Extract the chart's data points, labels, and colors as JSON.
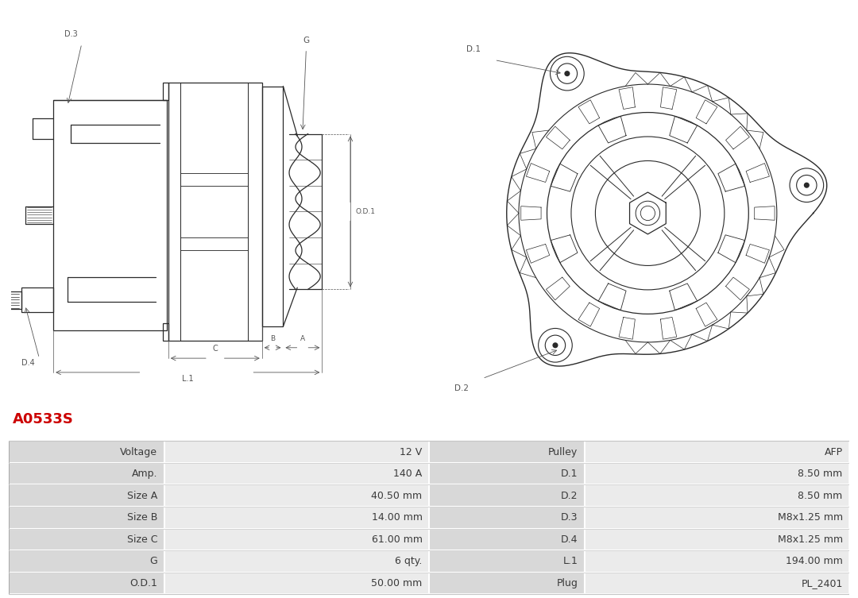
{
  "title": "A0533S",
  "title_color": "#cc0000",
  "bg_color": "#ffffff",
  "line_color": "#2a2a2a",
  "dim_color": "#555555",
  "table_label_bg": "#d8d8d8",
  "table_value_bg": "#ebebeb",
  "table_border_color": "#ffffff",
  "table_data": [
    [
      "Voltage",
      "12 V",
      "Pulley",
      "AFP"
    ],
    [
      "Amp.",
      "140 A",
      "D.1",
      "8.50 mm"
    ],
    [
      "Size A",
      "40.50 mm",
      "D.2",
      "8.50 mm"
    ],
    [
      "Size B",
      "14.00 mm",
      "D.3",
      "M8x1.25 mm"
    ],
    [
      "Size C",
      "61.00 mm",
      "D.4",
      "M8x1.25 mm"
    ],
    [
      "G",
      "6 qty.",
      "L.1",
      "194.00 mm"
    ],
    [
      "O.D.1",
      "50.00 mm",
      "Plug",
      "PL_2401"
    ]
  ],
  "font_size_table": 9.0,
  "font_size_title": 13
}
